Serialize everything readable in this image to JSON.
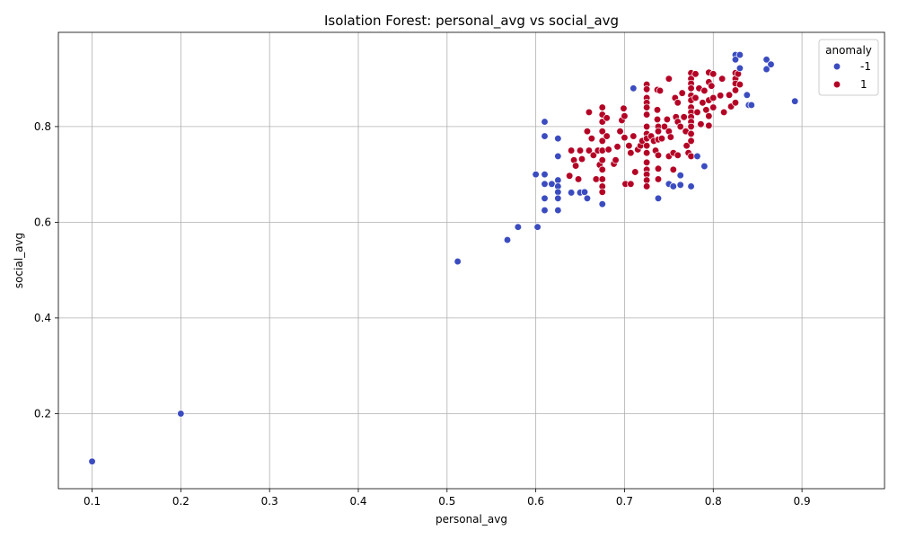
{
  "chart_data": {
    "type": "scatter",
    "title": "Isolation Forest: personal_avg vs social_avg",
    "xlabel": "personal_avg",
    "ylabel": "social_avg",
    "xlim": [
      0.062,
      0.993
    ],
    "ylim": [
      0.043,
      0.997
    ],
    "xticks": [
      0.1,
      0.2,
      0.3,
      0.4,
      0.5,
      0.6,
      0.7,
      0.8,
      0.9
    ],
    "yticks": [
      0.2,
      0.4,
      0.6,
      0.8
    ],
    "grid": true,
    "legend": {
      "title": "anomaly",
      "placement": "top-right"
    },
    "series": [
      {
        "name": "-1",
        "color": "#3b4cc0",
        "points": [
          [
            0.1,
            0.1
          ],
          [
            0.2,
            0.2
          ],
          [
            0.512,
            0.518
          ],
          [
            0.568,
            0.563
          ],
          [
            0.58,
            0.59
          ],
          [
            0.602,
            0.59
          ],
          [
            0.6,
            0.7
          ],
          [
            0.61,
            0.81
          ],
          [
            0.61,
            0.78
          ],
          [
            0.61,
            0.7
          ],
          [
            0.61,
            0.68
          ],
          [
            0.61,
            0.65
          ],
          [
            0.61,
            0.625
          ],
          [
            0.618,
            0.68
          ],
          [
            0.625,
            0.775
          ],
          [
            0.625,
            0.738
          ],
          [
            0.625,
            0.688
          ],
          [
            0.625,
            0.675
          ],
          [
            0.625,
            0.663
          ],
          [
            0.625,
            0.65
          ],
          [
            0.625,
            0.625
          ],
          [
            0.64,
            0.662
          ],
          [
            0.65,
            0.662
          ],
          [
            0.655,
            0.663
          ],
          [
            0.658,
            0.65
          ],
          [
            0.675,
            0.638
          ],
          [
            0.71,
            0.88
          ],
          [
            0.738,
            0.65
          ],
          [
            0.75,
            0.68
          ],
          [
            0.755,
            0.675
          ],
          [
            0.763,
            0.698
          ],
          [
            0.763,
            0.678
          ],
          [
            0.775,
            0.675
          ],
          [
            0.782,
            0.738
          ],
          [
            0.79,
            0.717
          ],
          [
            0.825,
            0.95
          ],
          [
            0.825,
            0.94
          ],
          [
            0.83,
            0.95
          ],
          [
            0.83,
            0.922
          ],
          [
            0.838,
            0.866
          ],
          [
            0.84,
            0.845
          ],
          [
            0.843,
            0.845
          ],
          [
            0.86,
            0.94
          ],
          [
            0.86,
            0.92
          ],
          [
            0.865,
            0.93
          ],
          [
            0.892,
            0.853
          ]
        ]
      },
      {
        "name": "1",
        "color": "#b40426",
        "points": [
          [
            0.638,
            0.697
          ],
          [
            0.64,
            0.75
          ],
          [
            0.643,
            0.73
          ],
          [
            0.645,
            0.718
          ],
          [
            0.648,
            0.69
          ],
          [
            0.65,
            0.75
          ],
          [
            0.652,
            0.732
          ],
          [
            0.658,
            0.79
          ],
          [
            0.66,
            0.83
          ],
          [
            0.66,
            0.75
          ],
          [
            0.663,
            0.775
          ],
          [
            0.665,
            0.74
          ],
          [
            0.668,
            0.69
          ],
          [
            0.67,
            0.75
          ],
          [
            0.672,
            0.72
          ],
          [
            0.675,
            0.84
          ],
          [
            0.675,
            0.825
          ],
          [
            0.675,
            0.81
          ],
          [
            0.675,
            0.79
          ],
          [
            0.675,
            0.77
          ],
          [
            0.675,
            0.75
          ],
          [
            0.675,
            0.73
          ],
          [
            0.675,
            0.71
          ],
          [
            0.675,
            0.69
          ],
          [
            0.675,
            0.675
          ],
          [
            0.675,
            0.663
          ],
          [
            0.68,
            0.818
          ],
          [
            0.68,
            0.78
          ],
          [
            0.682,
            0.752
          ],
          [
            0.688,
            0.722
          ],
          [
            0.69,
            0.73
          ],
          [
            0.692,
            0.758
          ],
          [
            0.695,
            0.79
          ],
          [
            0.697,
            0.813
          ],
          [
            0.699,
            0.838
          ],
          [
            0.7,
            0.822
          ],
          [
            0.7,
            0.777
          ],
          [
            0.701,
            0.68
          ],
          [
            0.705,
            0.76
          ],
          [
            0.707,
            0.745
          ],
          [
            0.707,
            0.68
          ],
          [
            0.71,
            0.78
          ],
          [
            0.712,
            0.705
          ],
          [
            0.715,
            0.752
          ],
          [
            0.718,
            0.76
          ],
          [
            0.72,
            0.77
          ],
          [
            0.725,
            0.888
          ],
          [
            0.725,
            0.878
          ],
          [
            0.725,
            0.86
          ],
          [
            0.725,
            0.85
          ],
          [
            0.725,
            0.84
          ],
          [
            0.725,
            0.825
          ],
          [
            0.725,
            0.8
          ],
          [
            0.725,
            0.785
          ],
          [
            0.725,
            0.775
          ],
          [
            0.725,
            0.76
          ],
          [
            0.725,
            0.745
          ],
          [
            0.725,
            0.725
          ],
          [
            0.725,
            0.71
          ],
          [
            0.725,
            0.7
          ],
          [
            0.725,
            0.688
          ],
          [
            0.725,
            0.675
          ],
          [
            0.73,
            0.78
          ],
          [
            0.733,
            0.77
          ],
          [
            0.735,
            0.75
          ],
          [
            0.737,
            0.877
          ],
          [
            0.737,
            0.835
          ],
          [
            0.737,
            0.815
          ],
          [
            0.738,
            0.8
          ],
          [
            0.738,
            0.79
          ],
          [
            0.738,
            0.773
          ],
          [
            0.738,
            0.74
          ],
          [
            0.738,
            0.712
          ],
          [
            0.738,
            0.69
          ],
          [
            0.74,
            0.875
          ],
          [
            0.742,
            0.775
          ],
          [
            0.745,
            0.8
          ],
          [
            0.748,
            0.815
          ],
          [
            0.75,
            0.9
          ],
          [
            0.75,
            0.79
          ],
          [
            0.75,
            0.738
          ],
          [
            0.752,
            0.778
          ],
          [
            0.755,
            0.745
          ],
          [
            0.755,
            0.71
          ],
          [
            0.757,
            0.86
          ],
          [
            0.758,
            0.82
          ],
          [
            0.76,
            0.85
          ],
          [
            0.76,
            0.81
          ],
          [
            0.76,
            0.74
          ],
          [
            0.763,
            0.8
          ],
          [
            0.765,
            0.87
          ],
          [
            0.767,
            0.82
          ],
          [
            0.769,
            0.79
          ],
          [
            0.77,
            0.76
          ],
          [
            0.772,
            0.745
          ],
          [
            0.775,
            0.912
          ],
          [
            0.775,
            0.9
          ],
          [
            0.775,
            0.89
          ],
          [
            0.775,
            0.88
          ],
          [
            0.775,
            0.865
          ],
          [
            0.775,
            0.855
          ],
          [
            0.775,
            0.84
          ],
          [
            0.775,
            0.83
          ],
          [
            0.775,
            0.82
          ],
          [
            0.775,
            0.81
          ],
          [
            0.775,
            0.8
          ],
          [
            0.775,
            0.785
          ],
          [
            0.775,
            0.77
          ],
          [
            0.775,
            0.738
          ],
          [
            0.78,
            0.91
          ],
          [
            0.78,
            0.86
          ],
          [
            0.782,
            0.83
          ],
          [
            0.784,
            0.88
          ],
          [
            0.786,
            0.805
          ],
          [
            0.788,
            0.85
          ],
          [
            0.79,
            0.875
          ],
          [
            0.792,
            0.835
          ],
          [
            0.795,
            0.913
          ],
          [
            0.795,
            0.893
          ],
          [
            0.795,
            0.855
          ],
          [
            0.795,
            0.822
          ],
          [
            0.795,
            0.802
          ],
          [
            0.798,
            0.885
          ],
          [
            0.8,
            0.91
          ],
          [
            0.8,
            0.86
          ],
          [
            0.8,
            0.84
          ],
          [
            0.808,
            0.865
          ],
          [
            0.81,
            0.9
          ],
          [
            0.812,
            0.83
          ],
          [
            0.818,
            0.866
          ],
          [
            0.82,
            0.842
          ],
          [
            0.825,
            0.912
          ],
          [
            0.825,
            0.9
          ],
          [
            0.825,
            0.89
          ],
          [
            0.825,
            0.876
          ],
          [
            0.825,
            0.85
          ],
          [
            0.828,
            0.91
          ],
          [
            0.83,
            0.888
          ]
        ]
      }
    ]
  }
}
